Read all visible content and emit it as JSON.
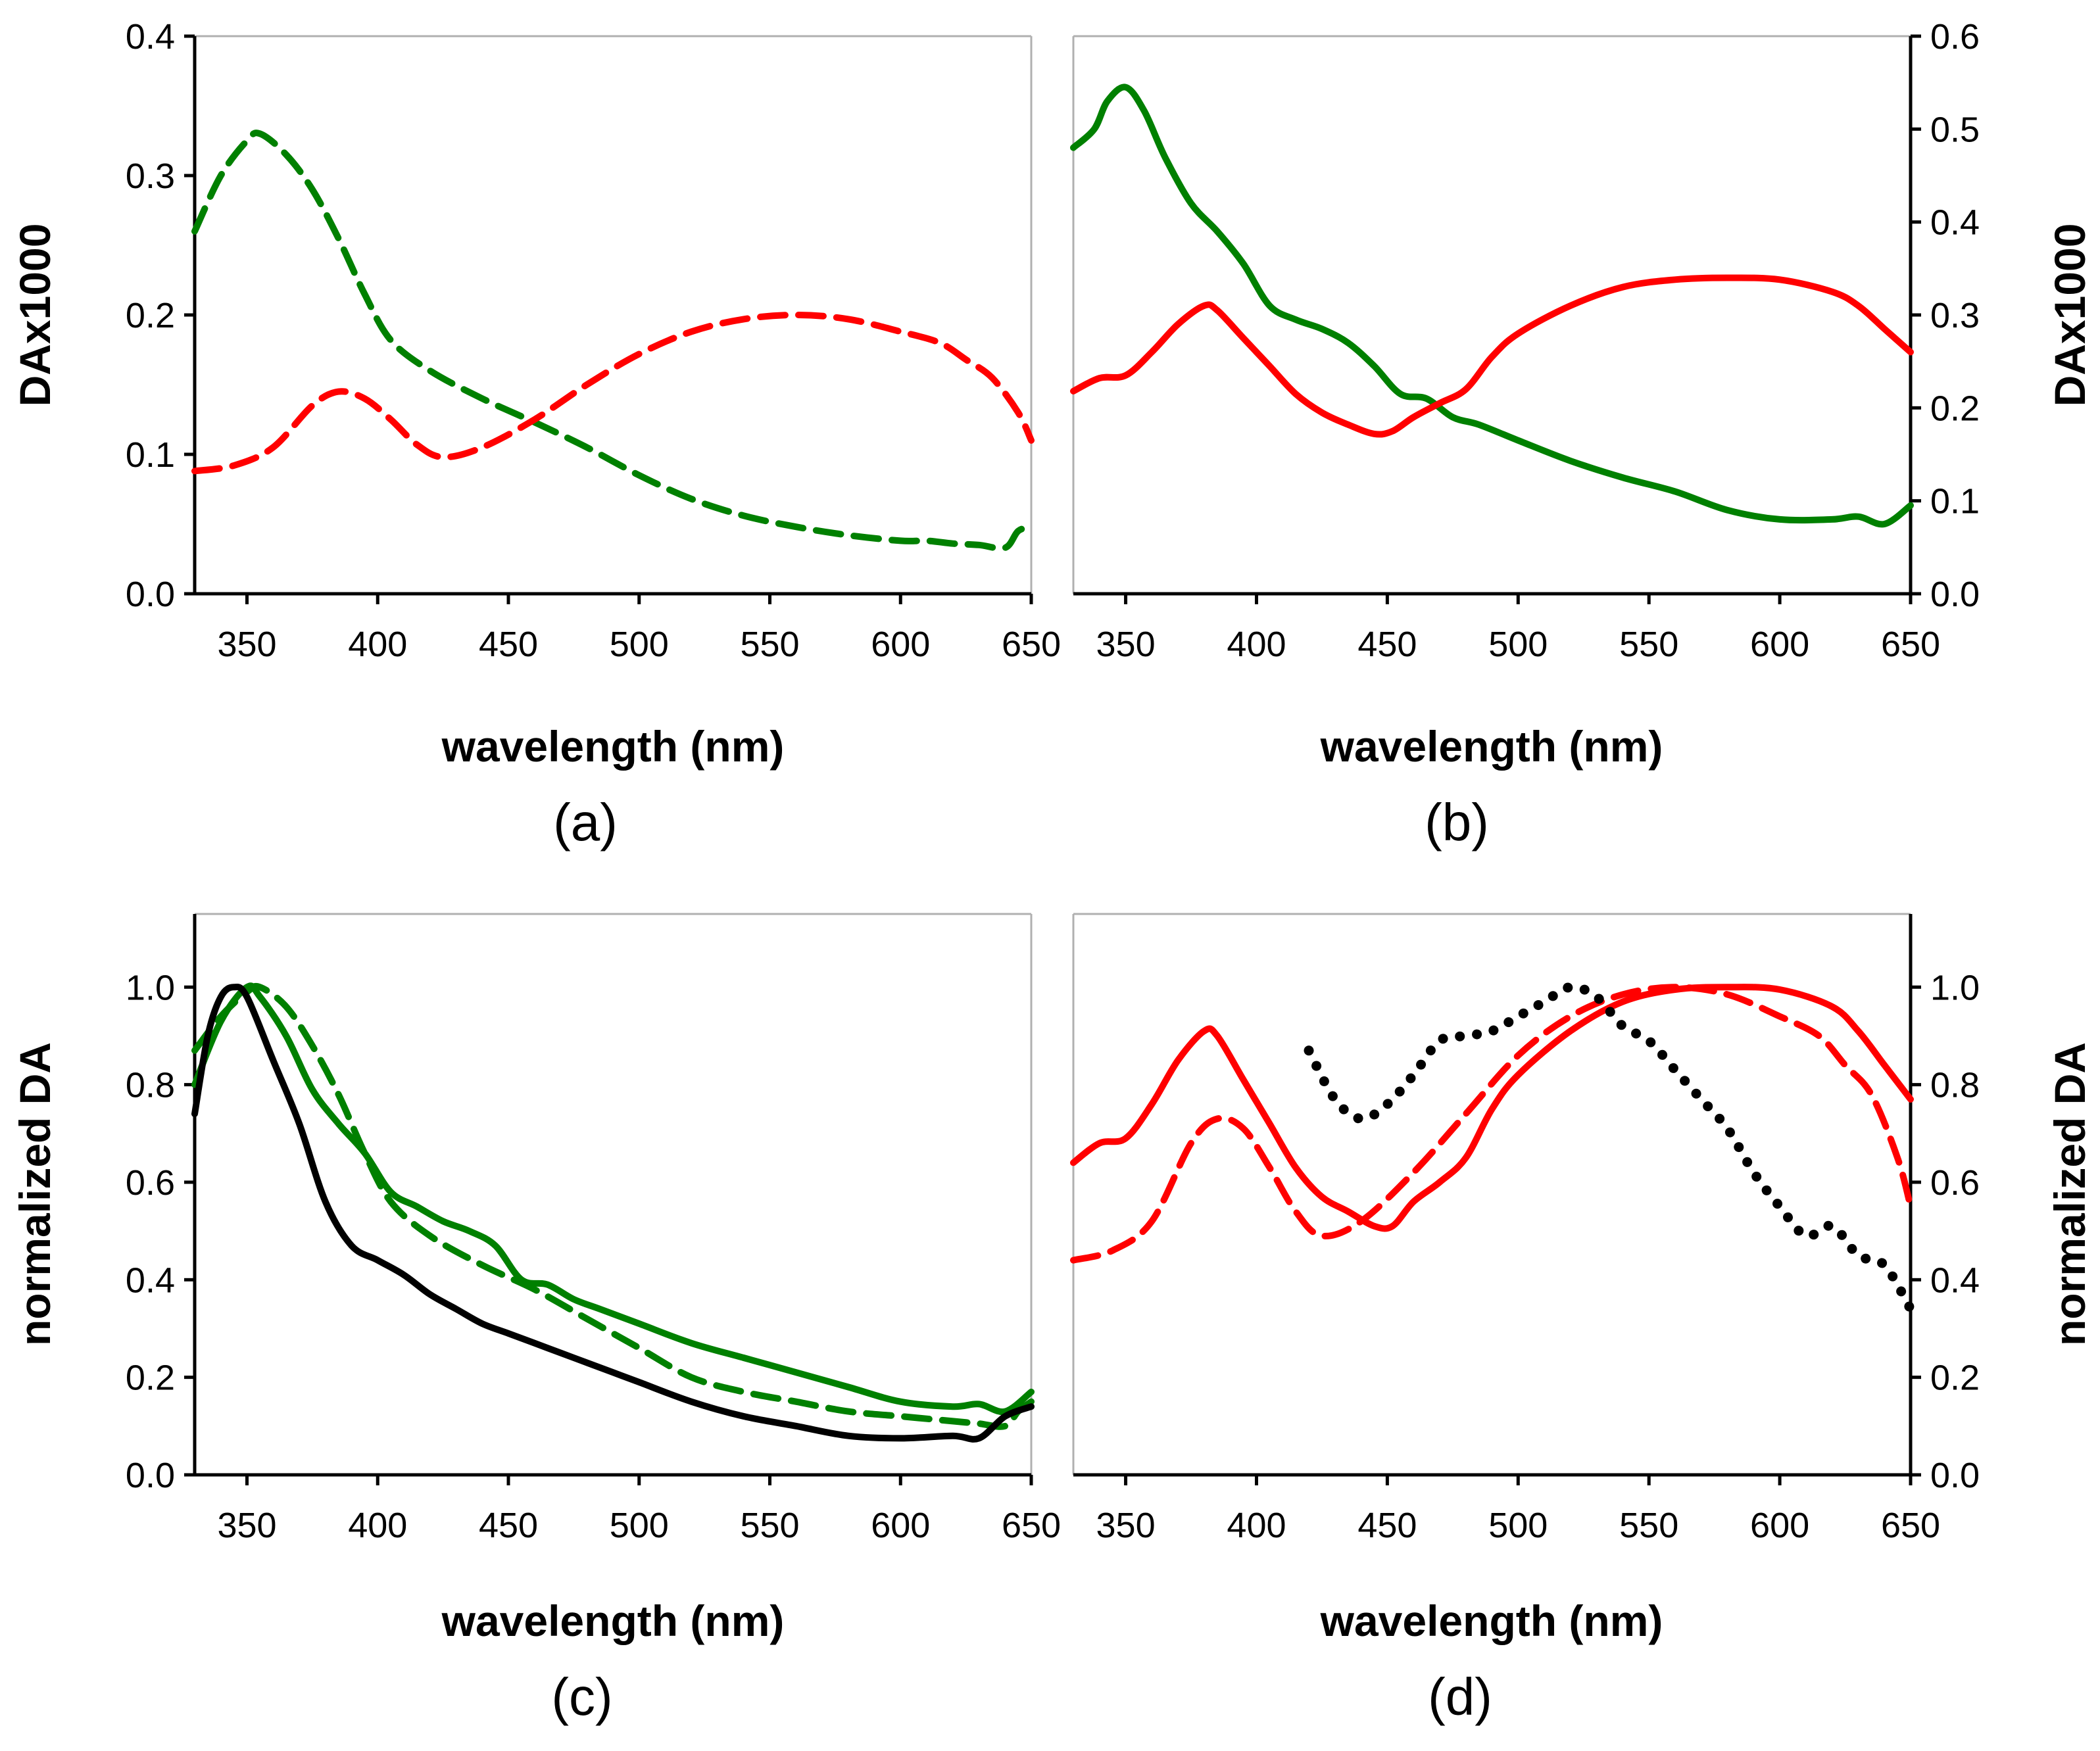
{
  "colors": {
    "green": "#008000",
    "red": "#ff0000",
    "black": "#000000"
  },
  "chart_data": [
    {
      "id": "a",
      "type": "line",
      "caption": "(a)",
      "xlabel": "wavelength (nm)",
      "ylabel": "DAx1000",
      "ylabel_side": "left",
      "xlim": [
        330,
        650
      ],
      "ylim": [
        0,
        0.4
      ],
      "xticks": [
        350,
        400,
        450,
        500,
        550,
        600,
        650
      ],
      "yticks": [
        "0.0",
        "0.1",
        "0.2",
        "0.3",
        "0.4"
      ],
      "series": [
        {
          "name": "green dashed",
          "color": "#008000",
          "style": "dashed",
          "x": [
            330,
            340,
            350,
            355,
            365,
            375,
            385,
            395,
            405,
            420,
            440,
            460,
            480,
            500,
            520,
            540,
            560,
            580,
            600,
            610,
            620,
            630,
            640,
            645,
            650
          ],
          "y": [
            0.26,
            0.3,
            0.325,
            0.33,
            0.315,
            0.29,
            0.255,
            0.215,
            0.182,
            0.16,
            0.14,
            0.123,
            0.105,
            0.085,
            0.068,
            0.056,
            0.048,
            0.042,
            0.038,
            0.038,
            0.036,
            0.035,
            0.033,
            0.045,
            0.048
          ]
        },
        {
          "name": "red dashed",
          "color": "#ff0000",
          "style": "dashed",
          "x": [
            330,
            345,
            360,
            375,
            385,
            395,
            405,
            415,
            425,
            440,
            460,
            480,
            500,
            520,
            540,
            560,
            580,
            600,
            615,
            625,
            635,
            645,
            650
          ],
          "y": [
            0.088,
            0.092,
            0.105,
            0.135,
            0.145,
            0.14,
            0.125,
            0.107,
            0.098,
            0.105,
            0.125,
            0.15,
            0.172,
            0.188,
            0.197,
            0.2,
            0.197,
            0.188,
            0.18,
            0.168,
            0.155,
            0.13,
            0.11
          ]
        }
      ]
    },
    {
      "id": "b",
      "type": "line",
      "caption": "(b)",
      "xlabel": "wavelength (nm)",
      "ylabel": "DAx1000",
      "ylabel_side": "right",
      "xlim": [
        330,
        650
      ],
      "ylim": [
        0,
        0.6
      ],
      "xticks": [
        350,
        400,
        450,
        500,
        550,
        600,
        650
      ],
      "yticks": [
        "0.0",
        "0.1",
        "0.2",
        "0.3",
        "0.4",
        "0.5",
        "0.6"
      ],
      "series": [
        {
          "name": "green solid",
          "color": "#008000",
          "style": "solid",
          "x": [
            330,
            338,
            343,
            350,
            357,
            365,
            375,
            385,
            395,
            405,
            415,
            425,
            435,
            445,
            455,
            465,
            475,
            485,
            500,
            520,
            540,
            560,
            580,
            600,
            620,
            630,
            640,
            650
          ],
          "y": [
            0.48,
            0.5,
            0.53,
            0.545,
            0.52,
            0.47,
            0.42,
            0.39,
            0.355,
            0.31,
            0.295,
            0.285,
            0.27,
            0.245,
            0.215,
            0.21,
            0.19,
            0.182,
            0.165,
            0.143,
            0.125,
            0.11,
            0.09,
            0.08,
            0.08,
            0.083,
            0.075,
            0.095
          ]
        },
        {
          "name": "red solid",
          "color": "#ff0000",
          "style": "solid",
          "x": [
            330,
            340,
            350,
            360,
            370,
            380,
            385,
            395,
            405,
            415,
            425,
            435,
            445,
            452,
            460,
            470,
            480,
            490,
            500,
            520,
            540,
            560,
            580,
            600,
            620,
            630,
            640,
            650
          ],
          "y": [
            0.218,
            0.232,
            0.235,
            0.26,
            0.29,
            0.31,
            0.305,
            0.275,
            0.245,
            0.215,
            0.195,
            0.182,
            0.172,
            0.175,
            0.19,
            0.205,
            0.22,
            0.255,
            0.28,
            0.31,
            0.33,
            0.338,
            0.34,
            0.338,
            0.325,
            0.31,
            0.285,
            0.26
          ]
        }
      ]
    },
    {
      "id": "c",
      "type": "line",
      "caption": "(c)",
      "xlabel": "wavelength (nm)",
      "ylabel": "normalized DA",
      "ylabel_side": "left",
      "xlim": [
        330,
        650
      ],
      "ylim": [
        0,
        1.15
      ],
      "xticks": [
        350,
        400,
        450,
        500,
        550,
        600,
        650
      ],
      "yticks": [
        "0.0",
        "0.2",
        "0.4",
        "0.6",
        "0.8",
        "1.0"
      ],
      "series": [
        {
          "name": "green solid",
          "color": "#008000",
          "style": "solid",
          "x": [
            330,
            340,
            350,
            355,
            365,
            375,
            385,
            395,
            405,
            415,
            425,
            435,
            445,
            455,
            465,
            475,
            485,
            500,
            520,
            540,
            560,
            580,
            600,
            620,
            630,
            640,
            650
          ],
          "y": [
            0.8,
            0.93,
            1.0,
            0.98,
            0.9,
            0.79,
            0.72,
            0.66,
            0.58,
            0.55,
            0.52,
            0.5,
            0.47,
            0.4,
            0.39,
            0.36,
            0.34,
            0.31,
            0.27,
            0.24,
            0.21,
            0.18,
            0.15,
            0.14,
            0.145,
            0.13,
            0.17
          ]
        },
        {
          "name": "green dashed",
          "color": "#008000",
          "style": "dashed",
          "x": [
            330,
            340,
            350,
            355,
            365,
            375,
            385,
            395,
            405,
            420,
            440,
            460,
            480,
            500,
            520,
            540,
            560,
            580,
            600,
            610,
            620,
            630,
            640,
            645,
            650
          ],
          "y": [
            0.87,
            0.94,
            0.99,
            1.0,
            0.96,
            0.88,
            0.78,
            0.66,
            0.56,
            0.49,
            0.43,
            0.38,
            0.32,
            0.26,
            0.2,
            0.17,
            0.15,
            0.13,
            0.12,
            0.115,
            0.11,
            0.105,
            0.1,
            0.13,
            0.15
          ]
        },
        {
          "name": "black solid",
          "color": "#000000",
          "style": "solid",
          "x": [
            330,
            335,
            340,
            345,
            350,
            360,
            370,
            380,
            390,
            400,
            410,
            420,
            430,
            440,
            450,
            460,
            470,
            480,
            490,
            500,
            520,
            540,
            560,
            580,
            600,
            620,
            630,
            640,
            650
          ],
          "y": [
            0.74,
            0.9,
            0.98,
            1.0,
            0.98,
            0.85,
            0.72,
            0.56,
            0.47,
            0.44,
            0.41,
            0.37,
            0.34,
            0.31,
            0.29,
            0.27,
            0.25,
            0.23,
            0.21,
            0.19,
            0.15,
            0.12,
            0.1,
            0.08,
            0.075,
            0.08,
            0.075,
            0.12,
            0.14
          ]
        }
      ]
    },
    {
      "id": "d",
      "type": "line",
      "caption": "(d)",
      "xlabel": "wavelength (nm)",
      "ylabel": "normalized DA",
      "ylabel_side": "right",
      "xlim": [
        330,
        650
      ],
      "ylim": [
        0,
        1.15
      ],
      "xticks": [
        350,
        400,
        450,
        500,
        550,
        600,
        650
      ],
      "yticks": [
        "0.0",
        "0.2",
        "0.4",
        "0.6",
        "0.8",
        "1.0"
      ],
      "series": [
        {
          "name": "red solid",
          "color": "#ff0000",
          "style": "solid",
          "x": [
            330,
            340,
            350,
            360,
            370,
            380,
            385,
            395,
            405,
            415,
            425,
            435,
            445,
            452,
            460,
            470,
            480,
            490,
            500,
            520,
            540,
            560,
            580,
            600,
            620,
            630,
            640,
            650
          ],
          "y": [
            0.64,
            0.68,
            0.69,
            0.76,
            0.85,
            0.91,
            0.9,
            0.81,
            0.72,
            0.63,
            0.57,
            0.54,
            0.51,
            0.51,
            0.56,
            0.6,
            0.65,
            0.75,
            0.82,
            0.91,
            0.97,
            0.995,
            1.0,
            0.995,
            0.96,
            0.91,
            0.84,
            0.77
          ]
        },
        {
          "name": "red dashed",
          "color": "#ff0000",
          "style": "dashed",
          "x": [
            330,
            345,
            360,
            375,
            385,
            395,
            405,
            415,
            425,
            440,
            460,
            480,
            500,
            520,
            540,
            560,
            580,
            600,
            615,
            625,
            635,
            645,
            650
          ],
          "y": [
            0.44,
            0.46,
            0.52,
            0.68,
            0.73,
            0.71,
            0.63,
            0.54,
            0.49,
            0.52,
            0.62,
            0.74,
            0.86,
            0.94,
            0.985,
            1.0,
            0.985,
            0.94,
            0.9,
            0.84,
            0.78,
            0.65,
            0.55
          ]
        },
        {
          "name": "black dotted",
          "color": "#000000",
          "style": "dotted",
          "x": [
            420,
            430,
            440,
            450,
            460,
            470,
            480,
            490,
            500,
            510,
            520,
            530,
            540,
            550,
            560,
            570,
            580,
            590,
            600,
            610,
            620,
            630,
            640,
            650
          ],
          "y": [
            0.87,
            0.77,
            0.73,
            0.76,
            0.82,
            0.89,
            0.9,
            0.91,
            0.94,
            0.97,
            1.0,
            0.98,
            0.92,
            0.89,
            0.83,
            0.77,
            0.71,
            0.62,
            0.55,
            0.49,
            0.51,
            0.45,
            0.43,
            0.34
          ]
        }
      ]
    }
  ]
}
